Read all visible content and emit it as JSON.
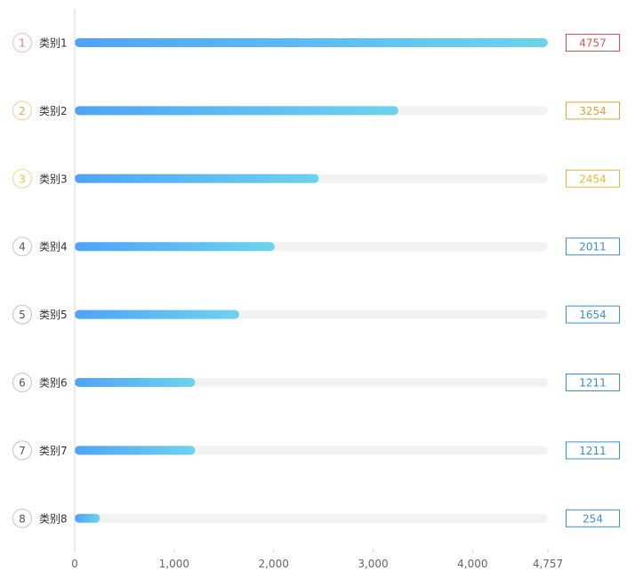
{
  "chart_data": {
    "type": "bar",
    "orientation": "horizontal",
    "categories": [
      "类别1",
      "类别2",
      "类别3",
      "类别4",
      "类别5",
      "类别6",
      "类别7",
      "类别8"
    ],
    "ranks": [
      "1",
      "2",
      "3",
      "4",
      "5",
      "6",
      "7",
      "8"
    ],
    "values": [
      4757,
      3254,
      2454,
      2011,
      1654,
      1211,
      1211,
      254
    ],
    "value_labels": [
      "4757",
      "3254",
      "2454",
      "2011",
      "1654",
      "1211",
      "1211",
      "254"
    ],
    "xlim": [
      0,
      4757
    ],
    "xticks": [
      0,
      1000,
      2000,
      3000,
      4000,
      4757
    ],
    "xtick_labels": [
      "0",
      "1,000",
      "2,000",
      "3,000",
      "4,000",
      "4,757"
    ],
    "grid": false,
    "colors": {
      "bar_gradient_start": "#4fa3f7",
      "bar_gradient_end": "#6dd3ee",
      "track": "#f2f2f2",
      "axis": "#d8d8d8",
      "tick_text": "#666666",
      "label_text": "#333333",
      "rank_colors": [
        "#f07570",
        "#f0a650",
        "#e8c040",
        "#555555",
        "#555555",
        "#555555",
        "#555555",
        "#555555"
      ],
      "rank_border_colors": [
        "#f5c5c2",
        "#f5d4a8",
        "#f0dc98",
        "#cccccc",
        "#cccccc",
        "#cccccc",
        "#cccccc",
        "#cccccc"
      ],
      "value_box_colors": [
        "#e05050",
        "#e8a030",
        "#e8b830",
        "#3a8fd0",
        "#3a8fd0",
        "#3a8fd0",
        "#3a8fd0",
        "#3a8fd0"
      ]
    }
  }
}
